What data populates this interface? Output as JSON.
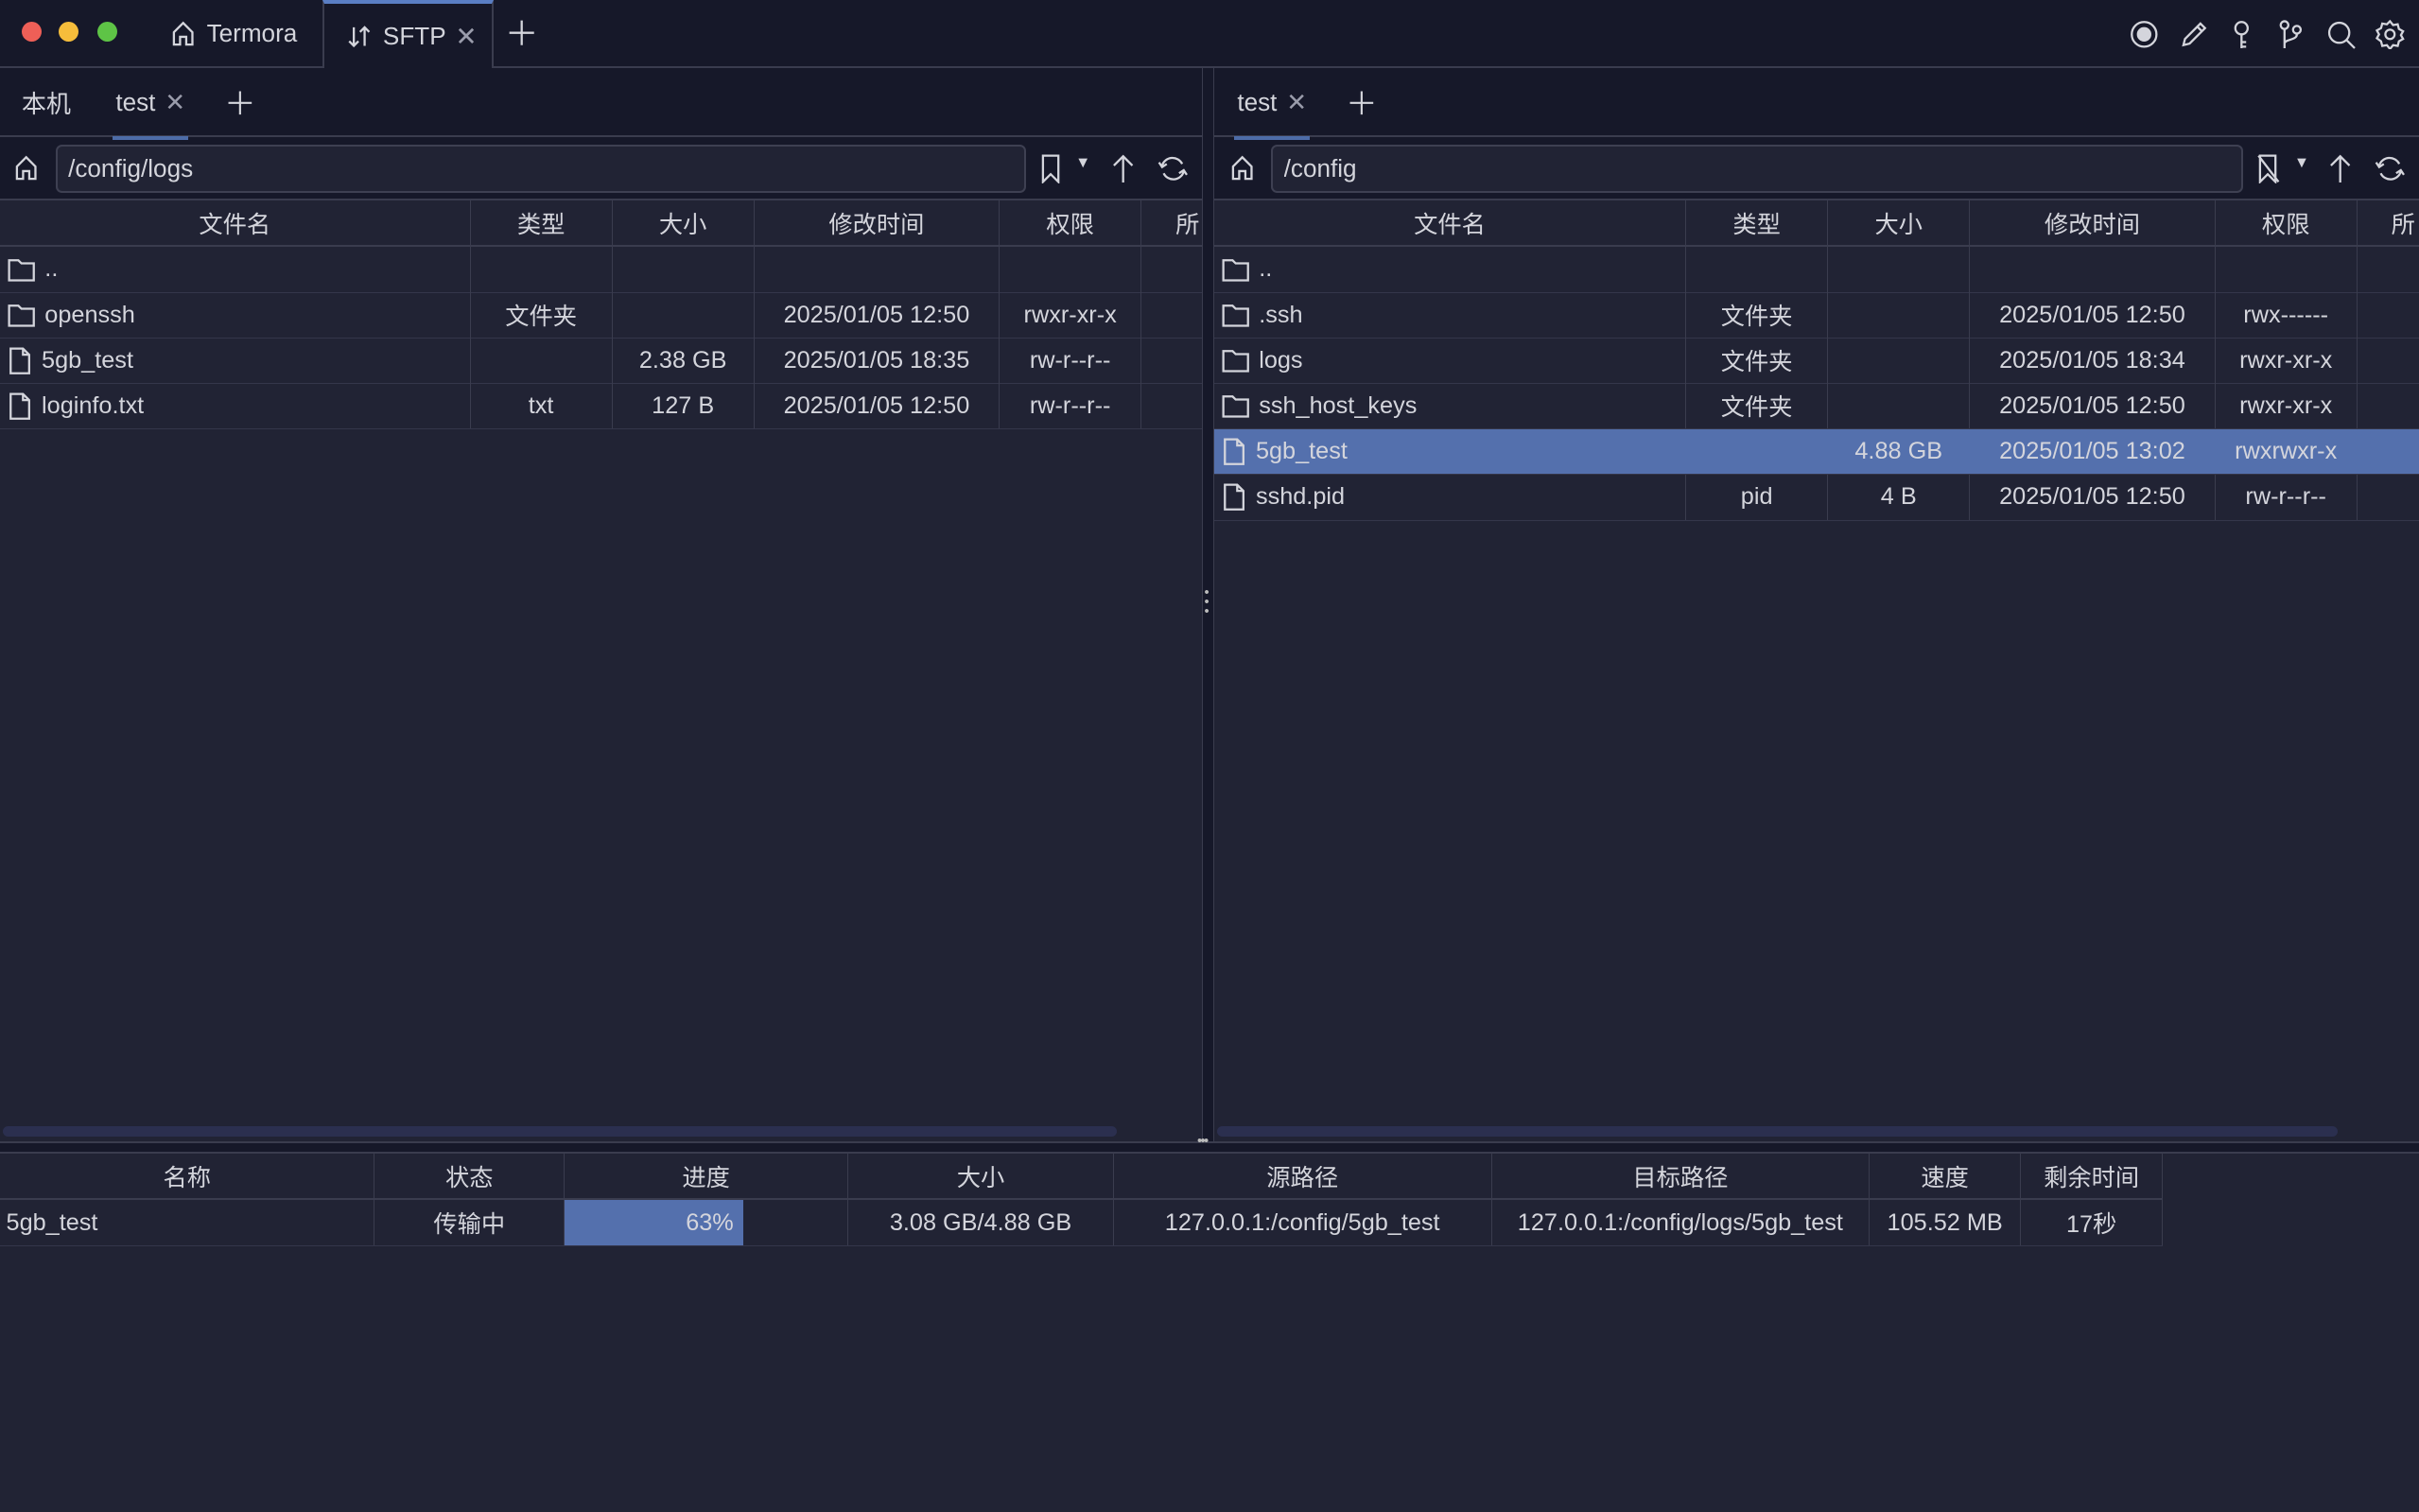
{
  "window": {
    "tabs": [
      {
        "label": "Termora",
        "icon": "home-icon"
      },
      {
        "label": "SFTP",
        "icon": "transfer-icon",
        "active": true
      }
    ],
    "toolbar_icons": [
      "record-icon",
      "pencil-icon",
      "key-icon",
      "git-branch-icon",
      "search-icon",
      "gear-icon"
    ]
  },
  "left": {
    "tabs": [
      {
        "label": "本机"
      },
      {
        "label": "test",
        "active": true
      }
    ],
    "path": "/config/logs",
    "columns": [
      "文件名",
      "类型",
      "大小",
      "修改时间",
      "权限",
      "所"
    ],
    "rows": [
      {
        "name": "..",
        "type": "",
        "size": "",
        "mtime": "",
        "perm": "",
        "kind": "folder"
      },
      {
        "name": "openssh",
        "type": "文件夹",
        "size": "",
        "mtime": "2025/01/05 12:50",
        "perm": "rwxr-xr-x",
        "kind": "folder"
      },
      {
        "name": "5gb_test",
        "type": "",
        "size": "2.38 GB",
        "mtime": "2025/01/05 18:35",
        "perm": "rw-r--r--",
        "kind": "file"
      },
      {
        "name": "loginfo.txt",
        "type": "txt",
        "size": "127 B",
        "mtime": "2025/01/05 12:50",
        "perm": "rw-r--r--",
        "kind": "file"
      }
    ]
  },
  "right": {
    "tabs": [
      {
        "label": "test",
        "active": true
      }
    ],
    "path": "/config",
    "columns": [
      "文件名",
      "类型",
      "大小",
      "修改时间",
      "权限",
      "所"
    ],
    "rows": [
      {
        "name": "..",
        "type": "",
        "size": "",
        "mtime": "",
        "perm": "",
        "kind": "folder"
      },
      {
        "name": ".ssh",
        "type": "文件夹",
        "size": "",
        "mtime": "2025/01/05 12:50",
        "perm": "rwx------",
        "kind": "folder"
      },
      {
        "name": "logs",
        "type": "文件夹",
        "size": "",
        "mtime": "2025/01/05 18:34",
        "perm": "rwxr-xr-x",
        "kind": "folder"
      },
      {
        "name": "ssh_host_keys",
        "type": "文件夹",
        "size": "",
        "mtime": "2025/01/05 12:50",
        "perm": "rwxr-xr-x",
        "kind": "folder"
      },
      {
        "name": "5gb_test",
        "type": "",
        "size": "4.88 GB",
        "mtime": "2025/01/05 13:02",
        "perm": "rwxrwxr-x",
        "kind": "file",
        "selected": true
      },
      {
        "name": "sshd.pid",
        "type": "pid",
        "size": "4 B",
        "mtime": "2025/01/05 12:50",
        "perm": "rw-r--r--",
        "kind": "file"
      }
    ]
  },
  "transfers": {
    "columns": [
      "名称",
      "状态",
      "进度",
      "大小",
      "源路径",
      "目标路径",
      "速度",
      "剩余时间"
    ],
    "rows": [
      {
        "name": "5gb_test",
        "status": "传输中",
        "progress_label": "63%",
        "progress": 63,
        "size": "3.08 GB/4.88 GB",
        "source": "127.0.0.1:/config/5gb_test",
        "target": "127.0.0.1:/config/logs/5gb_test",
        "speed": "105.52 MB",
        "remaining": "17秒"
      }
    ]
  },
  "colors": {
    "accent": "#5470ad",
    "tab_indicator": "#5a7ec4",
    "background": "#212334",
    "chrome": "#161829"
  }
}
